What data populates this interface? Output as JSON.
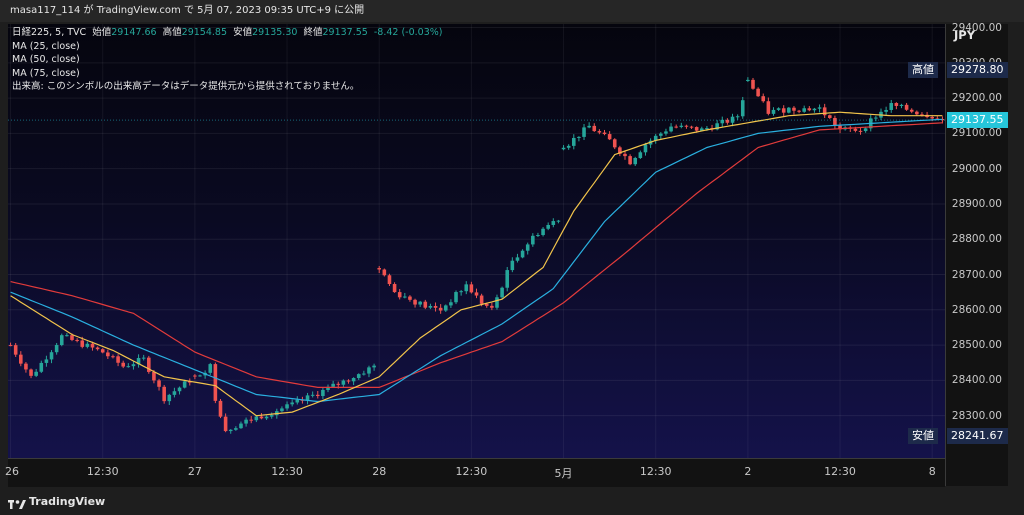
{
  "header": {
    "publish_line": "masa117_114 が TradingView.com で 5月 07, 2023 09:35 UTC+9 に公開"
  },
  "legend": {
    "symbol": "日経225, 5, TVC",
    "open_label": "始値",
    "open": "29147.66",
    "high_label": "高値",
    "high": "29154.85",
    "low_label": "安値",
    "low": "29135.30",
    "close_label": "終値",
    "close": "29137.55",
    "change": "-8.42 (-0.03%)",
    "ma1": "MA (25, close)",
    "ma2": "MA (50, close)",
    "ma3": "MA (75, close)",
    "volume_note": "出来高: このシンボルの出来高データはデータ提供元から提供されておりません。"
  },
  "axis": {
    "currency": "JPY",
    "high_tag_label": "高値",
    "high_tag_value": "29278.80",
    "last_price": "29137.55",
    "low_tag_label": "安値",
    "low_tag_value": "28241.67"
  },
  "footer": {
    "brand": "TradingView"
  },
  "colors": {
    "up": "#26a69a",
    "down": "#ef5350",
    "ma25": "#f2c44b",
    "ma50": "#2ab0e0",
    "ma75": "#e23b3b",
    "last": "#26c6da"
  },
  "chart_data": {
    "type": "candlestick",
    "ylim": [
      28180,
      29410
    ],
    "y_ticks": [
      28300,
      28400,
      28500,
      28600,
      28700,
      28800,
      28900,
      29000,
      29100,
      29200,
      29300,
      29400
    ],
    "x_ticks": [
      "26",
      "12:30",
      "27",
      "12:30",
      "28",
      "12:30",
      "5月",
      "12:30",
      "2",
      "12:30",
      "8"
    ],
    "price_anchors": [
      [
        0,
        28500
      ],
      [
        4,
        28410
      ],
      [
        10,
        28525
      ],
      [
        18,
        28480
      ],
      [
        22,
        28440
      ],
      [
        26,
        28460
      ],
      [
        30,
        28350
      ],
      [
        35,
        28400
      ],
      [
        39,
        28440
      ],
      [
        40,
        28350
      ],
      [
        42,
        28260
      ],
      [
        47,
        28290
      ],
      [
        55,
        28330
      ],
      [
        61,
        28370
      ],
      [
        67,
        28410
      ],
      [
        71,
        28440
      ],
      [
        72,
        28720
      ],
      [
        75,
        28650
      ],
      [
        81,
        28610
      ],
      [
        84,
        28600
      ],
      [
        89,
        28670
      ],
      [
        92,
        28620
      ],
      [
        94,
        28600
      ],
      [
        98,
        28740
      ],
      [
        103,
        28820
      ],
      [
        107,
        28860
      ],
      [
        108,
        29060
      ],
      [
        113,
        29120
      ],
      [
        117,
        29080
      ],
      [
        121,
        29020
      ],
      [
        124,
        29070
      ],
      [
        129,
        29120
      ],
      [
        135,
        29110
      ],
      [
        141,
        29140
      ],
      [
        142,
        29150
      ],
      [
        144,
        29250
      ],
      [
        148,
        29160
      ],
      [
        152,
        29170
      ],
      [
        158,
        29170
      ],
      [
        162,
        29110
      ],
      [
        166,
        29110
      ],
      [
        169,
        29150
      ],
      [
        172,
        29180
      ],
      [
        177,
        29160
      ],
      [
        180,
        29150
      ],
      [
        182,
        29137.55
      ]
    ],
    "ma25_anchors": [
      [
        0,
        28640
      ],
      [
        12,
        28530
      ],
      [
        20,
        28485
      ],
      [
        30,
        28410
      ],
      [
        40,
        28385
      ],
      [
        48,
        28300
      ],
      [
        55,
        28310
      ],
      [
        64,
        28360
      ],
      [
        72,
        28410
      ],
      [
        80,
        28520
      ],
      [
        88,
        28600
      ],
      [
        96,
        28630
      ],
      [
        104,
        28720
      ],
      [
        110,
        28880
      ],
      [
        118,
        29040
      ],
      [
        126,
        29080
      ],
      [
        136,
        29110
      ],
      [
        144,
        29130
      ],
      [
        152,
        29150
      ],
      [
        162,
        29160
      ],
      [
        172,
        29150
      ],
      [
        182,
        29150
      ]
    ],
    "ma50_anchors": [
      [
        0,
        28650
      ],
      [
        12,
        28580
      ],
      [
        24,
        28500
      ],
      [
        36,
        28430
      ],
      [
        48,
        28360
      ],
      [
        60,
        28340
      ],
      [
        72,
        28360
      ],
      [
        84,
        28470
      ],
      [
        96,
        28560
      ],
      [
        106,
        28660
      ],
      [
        116,
        28850
      ],
      [
        126,
        28990
      ],
      [
        136,
        29060
      ],
      [
        146,
        29100
      ],
      [
        158,
        29120
      ],
      [
        170,
        29130
      ],
      [
        182,
        29140
      ]
    ],
    "ma75_anchors": [
      [
        0,
        28680
      ],
      [
        12,
        28640
      ],
      [
        24,
        28590
      ],
      [
        36,
        28480
      ],
      [
        48,
        28410
      ],
      [
        60,
        28380
      ],
      [
        72,
        28380
      ],
      [
        84,
        28450
      ],
      [
        96,
        28510
      ],
      [
        108,
        28620
      ],
      [
        120,
        28760
      ],
      [
        134,
        28930
      ],
      [
        146,
        29060
      ],
      [
        158,
        29110
      ],
      [
        170,
        29120
      ],
      [
        182,
        29130
      ]
    ]
  }
}
